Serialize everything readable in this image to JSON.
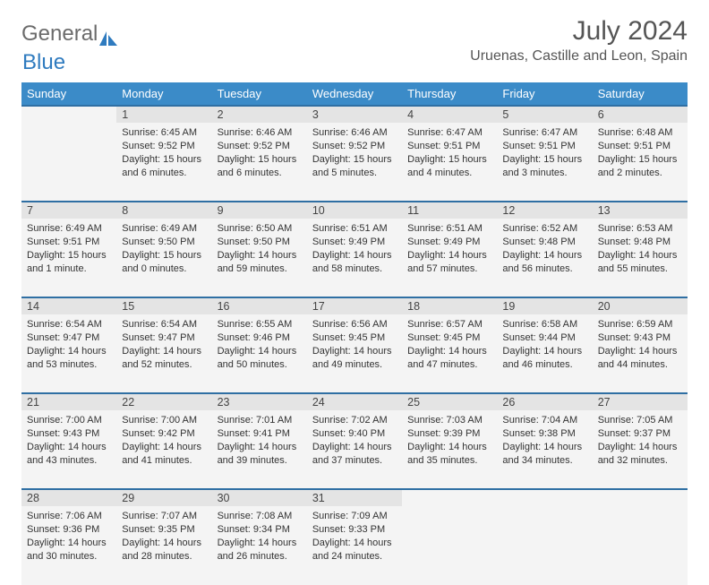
{
  "logo": {
    "word1": "General",
    "word2": "Blue"
  },
  "title": "July 2024",
  "location": "Uruenas, Castille and Leon, Spain",
  "colors": {
    "header_bg": "#3b8bc8",
    "header_text": "#ffffff",
    "week_divider": "#2f6fa3",
    "daynum_bg": "#e4e4e4",
    "cell_bg": "#f4f4f4",
    "text": "#333333",
    "logo_gray": "#6b6b6b",
    "logo_blue": "#2f7bbf"
  },
  "days_of_week": [
    "Sunday",
    "Monday",
    "Tuesday",
    "Wednesday",
    "Thursday",
    "Friday",
    "Saturday"
  ],
  "first_weekday_index": 1,
  "num_days": 31,
  "cells": {
    "1": {
      "sunrise": "6:45 AM",
      "sunset": "9:52 PM",
      "daylight": "15 hours and 6 minutes."
    },
    "2": {
      "sunrise": "6:46 AM",
      "sunset": "9:52 PM",
      "daylight": "15 hours and 6 minutes."
    },
    "3": {
      "sunrise": "6:46 AM",
      "sunset": "9:52 PM",
      "daylight": "15 hours and 5 minutes."
    },
    "4": {
      "sunrise": "6:47 AM",
      "sunset": "9:51 PM",
      "daylight": "15 hours and 4 minutes."
    },
    "5": {
      "sunrise": "6:47 AM",
      "sunset": "9:51 PM",
      "daylight": "15 hours and 3 minutes."
    },
    "6": {
      "sunrise": "6:48 AM",
      "sunset": "9:51 PM",
      "daylight": "15 hours and 2 minutes."
    },
    "7": {
      "sunrise": "6:49 AM",
      "sunset": "9:51 PM",
      "daylight": "15 hours and 1 minute."
    },
    "8": {
      "sunrise": "6:49 AM",
      "sunset": "9:50 PM",
      "daylight": "15 hours and 0 minutes."
    },
    "9": {
      "sunrise": "6:50 AM",
      "sunset": "9:50 PM",
      "daylight": "14 hours and 59 minutes."
    },
    "10": {
      "sunrise": "6:51 AM",
      "sunset": "9:49 PM",
      "daylight": "14 hours and 58 minutes."
    },
    "11": {
      "sunrise": "6:51 AM",
      "sunset": "9:49 PM",
      "daylight": "14 hours and 57 minutes."
    },
    "12": {
      "sunrise": "6:52 AM",
      "sunset": "9:48 PM",
      "daylight": "14 hours and 56 minutes."
    },
    "13": {
      "sunrise": "6:53 AM",
      "sunset": "9:48 PM",
      "daylight": "14 hours and 55 minutes."
    },
    "14": {
      "sunrise": "6:54 AM",
      "sunset": "9:47 PM",
      "daylight": "14 hours and 53 minutes."
    },
    "15": {
      "sunrise": "6:54 AM",
      "sunset": "9:47 PM",
      "daylight": "14 hours and 52 minutes."
    },
    "16": {
      "sunrise": "6:55 AM",
      "sunset": "9:46 PM",
      "daylight": "14 hours and 50 minutes."
    },
    "17": {
      "sunrise": "6:56 AM",
      "sunset": "9:45 PM",
      "daylight": "14 hours and 49 minutes."
    },
    "18": {
      "sunrise": "6:57 AM",
      "sunset": "9:45 PM",
      "daylight": "14 hours and 47 minutes."
    },
    "19": {
      "sunrise": "6:58 AM",
      "sunset": "9:44 PM",
      "daylight": "14 hours and 46 minutes."
    },
    "20": {
      "sunrise": "6:59 AM",
      "sunset": "9:43 PM",
      "daylight": "14 hours and 44 minutes."
    },
    "21": {
      "sunrise": "7:00 AM",
      "sunset": "9:43 PM",
      "daylight": "14 hours and 43 minutes."
    },
    "22": {
      "sunrise": "7:00 AM",
      "sunset": "9:42 PM",
      "daylight": "14 hours and 41 minutes."
    },
    "23": {
      "sunrise": "7:01 AM",
      "sunset": "9:41 PM",
      "daylight": "14 hours and 39 minutes."
    },
    "24": {
      "sunrise": "7:02 AM",
      "sunset": "9:40 PM",
      "daylight": "14 hours and 37 minutes."
    },
    "25": {
      "sunrise": "7:03 AM",
      "sunset": "9:39 PM",
      "daylight": "14 hours and 35 minutes."
    },
    "26": {
      "sunrise": "7:04 AM",
      "sunset": "9:38 PM",
      "daylight": "14 hours and 34 minutes."
    },
    "27": {
      "sunrise": "7:05 AM",
      "sunset": "9:37 PM",
      "daylight": "14 hours and 32 minutes."
    },
    "28": {
      "sunrise": "7:06 AM",
      "sunset": "9:36 PM",
      "daylight": "14 hours and 30 minutes."
    },
    "29": {
      "sunrise": "7:07 AM",
      "sunset": "9:35 PM",
      "daylight": "14 hours and 28 minutes."
    },
    "30": {
      "sunrise": "7:08 AM",
      "sunset": "9:34 PM",
      "daylight": "14 hours and 26 minutes."
    },
    "31": {
      "sunrise": "7:09 AM",
      "sunset": "9:33 PM",
      "daylight": "14 hours and 24 minutes."
    }
  },
  "labels": {
    "sunrise": "Sunrise:",
    "sunset": "Sunset:",
    "daylight": "Daylight:"
  }
}
